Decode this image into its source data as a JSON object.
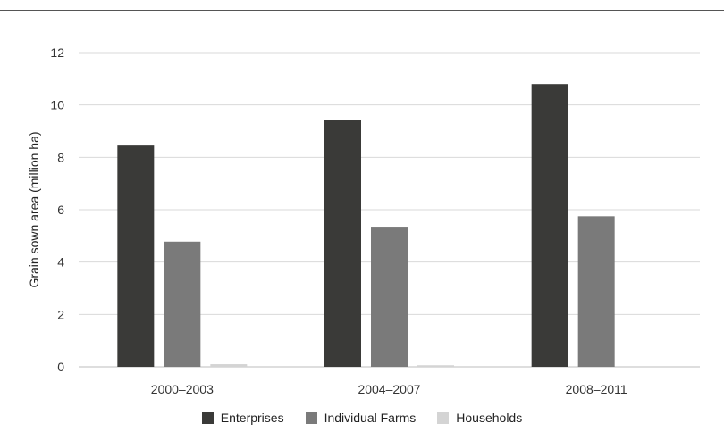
{
  "chart_data": {
    "type": "bar",
    "categories": [
      "2000–2003",
      "2004–2007",
      "2008–2011"
    ],
    "series": [
      {
        "name": "Enterprises",
        "values": [
          8.45,
          9.42,
          10.8
        ],
        "color": "#3a3a38"
      },
      {
        "name": "Individual Farms",
        "values": [
          4.78,
          5.35,
          5.75
        ],
        "color": "#7a7a7a"
      },
      {
        "name": "Households",
        "values": [
          0.1,
          0.06,
          0.0
        ],
        "color": "#d4d4d4"
      }
    ],
    "title": "",
    "xlabel": "",
    "ylabel": "Grain sown area (million ha)",
    "ylim": [
      0,
      12
    ],
    "yticks": [
      0,
      2,
      4,
      6,
      8,
      10,
      12
    ],
    "grid": true,
    "legend_position": "bottom"
  }
}
